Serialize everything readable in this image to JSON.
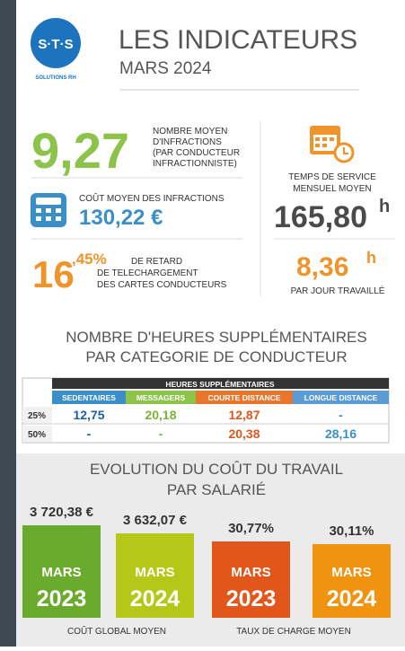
{
  "logo": {
    "text": "S·T·S",
    "subtitle": "SOLUTIONS RH"
  },
  "header": {
    "title": "LES INDICATEURS",
    "subtitle": "MARS 2024"
  },
  "kpis": {
    "infractions": {
      "value": "9,27",
      "label": [
        "NOMBRE MOYEN",
        "D'INFRACTIONS",
        "(PAR CONDUCTEUR",
        "INFRACTIONNISTE)"
      ]
    },
    "cost": {
      "label": "COÛT MOYEN DES INFRACTIONS",
      "value": "130,22 €"
    },
    "delay": {
      "value_main": "16",
      "value_fraction": ",45%",
      "label": [
        "DE RETARD",
        "DE TELECHARGEMENT",
        "DES CARTES CONDUCTEURS"
      ]
    },
    "service_time": {
      "label": [
        "TEMPS DE SERVICE",
        "MENSUEL MOYEN"
      ],
      "value": "165,80",
      "unit": "h"
    },
    "daily": {
      "value": "8,36",
      "unit": "h",
      "label": "PAR JOUR TRAVAILLÉ"
    }
  },
  "overtime": {
    "title": [
      "NOMBRE D'HEURES SUPPLÉMENTAIRES",
      "PAR CATEGORIE DE CONDUCTEUR"
    ],
    "table": {
      "group_header": "HEURES SUPPLÉMENTAIRES",
      "columns": [
        "SEDENTAIRES",
        "MESSAGERS",
        "COURTE DISTANCE",
        "LONGUE DISTANCE"
      ],
      "rows": [
        {
          "label": "25%",
          "cells": [
            "12,75",
            "20,18",
            "12,87",
            "-"
          ]
        },
        {
          "label": "50%",
          "cells": [
            "-",
            "-",
            "20,38",
            "28,16"
          ]
        }
      ]
    }
  },
  "evolution": {
    "title": [
      "EVOLUTION DU COÛT DU TRAVAIL",
      "PAR SALARIÉ"
    ],
    "items": [
      {
        "value": "3 720,38 €",
        "month": "MARS",
        "year": "2023"
      },
      {
        "value": "3 632,07 €",
        "month": "MARS",
        "year": "2024"
      },
      {
        "value": "30,77%",
        "month": "MARS",
        "year": "2023"
      },
      {
        "value": "30,11%",
        "month": "MARS",
        "year": "2024"
      }
    ],
    "footers": [
      "COÛT GLOBAL MOYEN",
      "TAUX DE CHARGE MOYEN"
    ]
  }
}
